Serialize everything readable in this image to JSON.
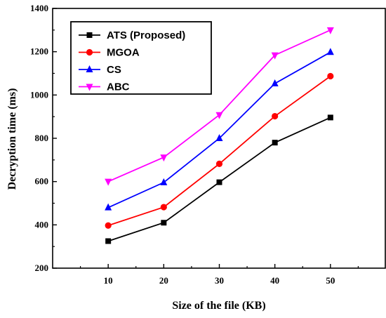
{
  "chart_data": {
    "type": "line",
    "xlabel": "Size of the file (KB)",
    "ylabel": "Decryption time (ms)",
    "x": [
      10,
      20,
      30,
      40,
      50
    ],
    "xlim": [
      0,
      60
    ],
    "ylim": [
      200,
      1400
    ],
    "xticks": [
      10,
      20,
      30,
      40,
      50
    ],
    "yticks": [
      200,
      400,
      600,
      800,
      1000,
      1200,
      1400
    ],
    "grid": false,
    "legend_position": "top-left",
    "series": [
      {
        "name": "ATS (Proposed)",
        "values": [
          325,
          410,
          597,
          780,
          896
        ],
        "color": "#000000",
        "marker": "square"
      },
      {
        "name": "MGOA",
        "values": [
          397,
          482,
          682,
          902,
          1087
        ],
        "color": "#ff0000",
        "marker": "circle"
      },
      {
        "name": "CS",
        "values": [
          480,
          596,
          800,
          1053,
          1198
        ],
        "color": "#0000ff",
        "marker": "triangle-up"
      },
      {
        "name": "ABC",
        "values": [
          600,
          712,
          908,
          1184,
          1300
        ],
        "color": "#ff00ff",
        "marker": "triangle-down"
      }
    ]
  }
}
